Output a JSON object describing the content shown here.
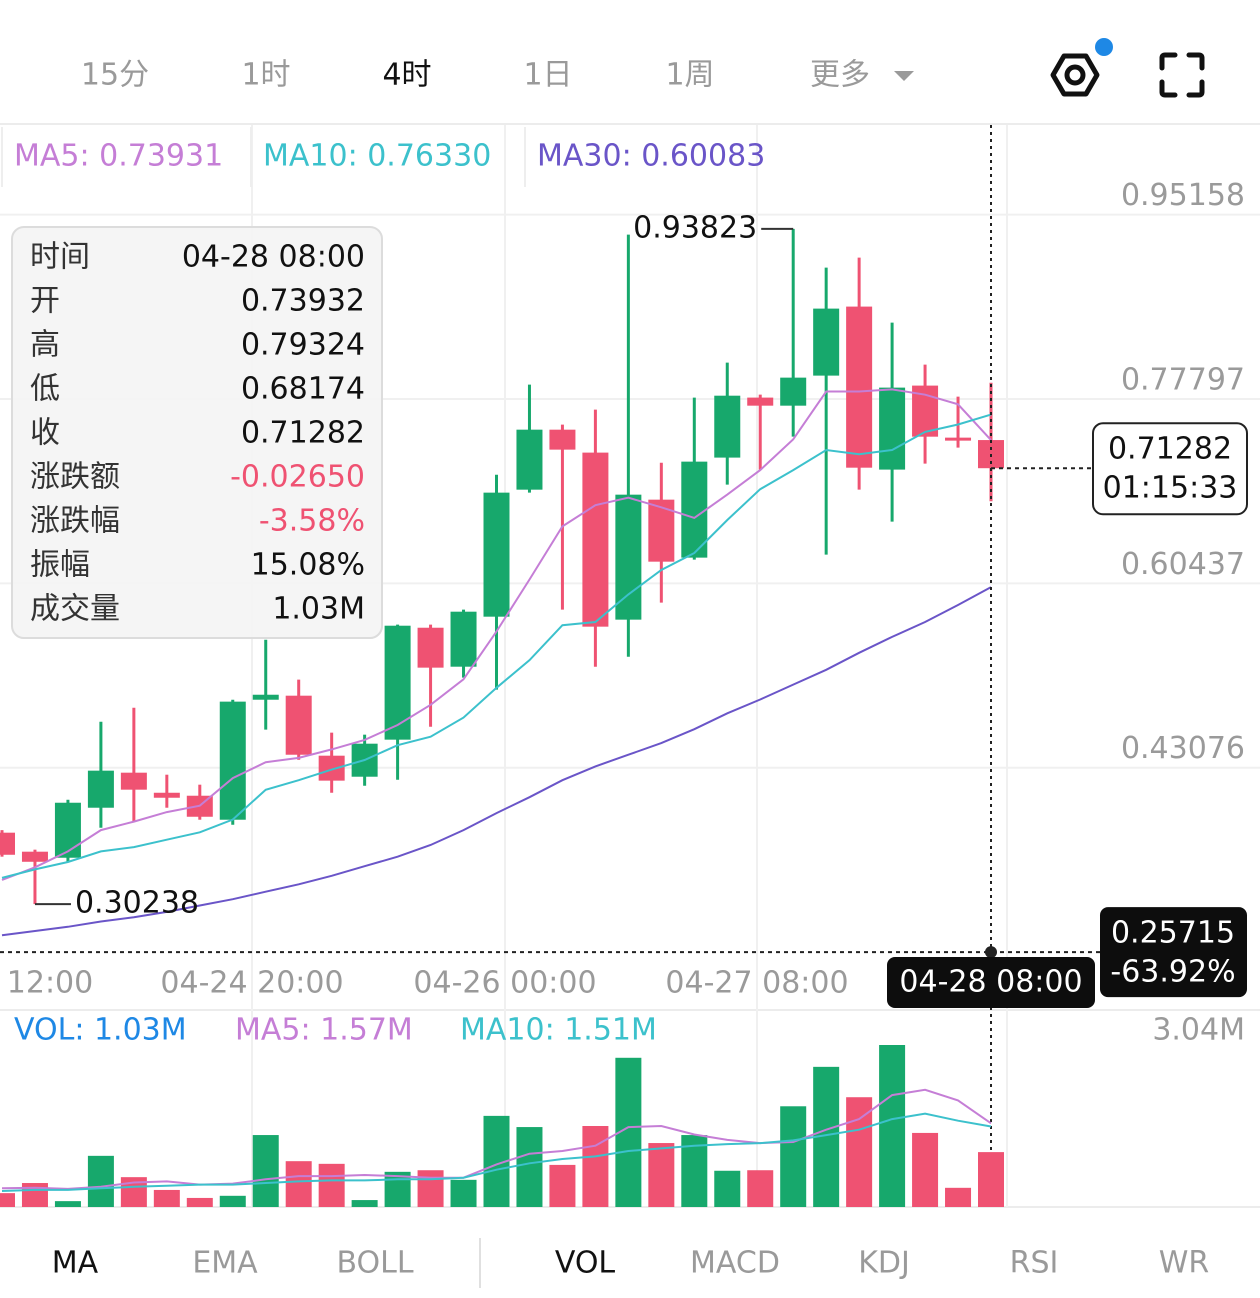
{
  "tabs": {
    "items": [
      "15分",
      "1时",
      "4时",
      "1日",
      "1周",
      "更多"
    ],
    "active": 2
  },
  "indicator_tabs": {
    "main": [
      "MA",
      "EMA",
      "BOLL"
    ],
    "sub": [
      "VOL",
      "MACD",
      "KDJ",
      "RSI",
      "WR"
    ],
    "active_main": 0,
    "active_sub": 0
  },
  "chart_data": [
    {
      "type": "candlestick",
      "open": [
        0.3696,
        0.3517,
        0.346,
        0.3931,
        0.4261,
        0.4072,
        0.4044,
        0.3818,
        0.4948,
        0.4986,
        0.4421,
        0.4223,
        0.4572,
        0.5626,
        0.5259,
        0.573,
        0.6926,
        0.7491,
        0.7275,
        0.5702,
        0.6832,
        0.6286,
        0.7228,
        0.7793,
        0.7717,
        0.8,
        0.865,
        0.7115,
        0.7906,
        0.7416,
        0.73932
      ],
      "high": [
        0.372,
        0.3536,
        0.4006,
        0.4741,
        0.4873,
        0.4242,
        0.4148,
        0.4948,
        0.5513,
        0.5137,
        0.4638,
        0.4619,
        0.5655,
        0.5655,
        0.5796,
        0.7067,
        0.7915,
        0.7538,
        0.768,
        0.9328,
        0.718,
        0.7793,
        0.8122,
        0.7821,
        0.93823,
        0.9017,
        0.9111,
        0.8499,
        0.8103,
        0.7802,
        0.79324
      ],
      "low": [
        0.347,
        0.30238,
        0.3422,
        0.3743,
        0.3799,
        0.3931,
        0.3818,
        0.3771,
        0.4666,
        0.4383,
        0.4072,
        0.4138,
        0.4195,
        0.4694,
        0.5156,
        0.5043,
        0.6898,
        0.5796,
        0.5259,
        0.5353,
        0.5862,
        0.6267,
        0.6973,
        0.7115,
        0.7425,
        0.6314,
        0.6926,
        0.6625,
        0.7171,
        0.7322,
        0.68174
      ],
      "close": [
        0.3488,
        0.3422,
        0.3978,
        0.428,
        0.4101,
        0.4025,
        0.3846,
        0.493,
        0.4995,
        0.443,
        0.4186,
        0.4534,
        0.5645,
        0.525,
        0.5777,
        0.6898,
        0.7491,
        0.7303,
        0.5636,
        0.6879,
        0.6248,
        0.719,
        0.7811,
        0.7717,
        0.7981,
        0.8631,
        0.7133,
        0.7887,
        0.7425,
        0.7388,
        0.71282
      ],
      "up_color": "#17a86c",
      "down_color": "#ef5272",
      "series": [
        {
          "name": "MA5: 0.73931",
          "color": "#c57ed6",
          "values": [
            0.325,
            0.337,
            0.352,
            0.372,
            0.38,
            0.389,
            0.395,
            0.421,
            0.436,
            0.44,
            0.448,
            0.457,
            0.471,
            0.49,
            0.514,
            0.559,
            0.608,
            0.658,
            0.678,
            0.685,
            0.676,
            0.666,
            0.688,
            0.711,
            0.74,
            0.785,
            0.785,
            0.787,
            0.782,
            0.773,
            0.73931
          ]
        },
        {
          "name": "MA10: 0.76330",
          "color": "#3cc1cc",
          "values": [
            0.327,
            0.335,
            0.342,
            0.352,
            0.356,
            0.363,
            0.37,
            0.382,
            0.41,
            0.419,
            0.429,
            0.438,
            0.452,
            0.46,
            0.478,
            0.506,
            0.532,
            0.565,
            0.568,
            0.594,
            0.617,
            0.633,
            0.664,
            0.693,
            0.711,
            0.73,
            0.726,
            0.73,
            0.747,
            0.754,
            0.7633
          ]
        },
        {
          "name": "MA30: 0.60083",
          "color": "#6a55c8",
          "values": [
            0.273,
            0.277,
            0.281,
            0.286,
            0.29,
            0.295,
            0.301,
            0.307,
            0.314,
            0.321,
            0.329,
            0.338,
            0.347,
            0.358,
            0.372,
            0.388,
            0.403,
            0.419,
            0.432,
            0.443,
            0.454,
            0.467,
            0.482,
            0.495,
            0.509,
            0.523,
            0.539,
            0.554,
            0.568,
            0.584,
            0.60083
          ]
        }
      ],
      "ylim": [
        0.245,
        1.036
      ],
      "yticks": [
        0.43076,
        0.60437,
        0.77797,
        0.95158
      ],
      "xtick_labels": [
        "12:00",
        "04-24 20:00",
        "04-26 00:00",
        "04-27 08:00"
      ],
      "grid": true,
      "countdown": "01:15:33",
      "crosshair": {
        "time": "04-28 08:00",
        "price": 0.25715,
        "change": "-63.92%"
      },
      "tooltip": {
        "labels": [
          "时间",
          "开",
          "高",
          "低",
          "收",
          "涨跌额",
          "涨跌幅",
          "振幅",
          "成交量"
        ],
        "change": "-0.02650",
        "change_pct": "-3.58%",
        "amplitude": "15.08%",
        "volume": "1.03M"
      }
    },
    {
      "type": "bar",
      "label": "VOL: 1.03M",
      "label_color": "#1e88e5",
      "values": [
        0.26,
        0.45,
        0.11,
        0.96,
        0.56,
        0.32,
        0.17,
        0.21,
        1.35,
        0.86,
        0.81,
        0.13,
        0.66,
        0.69,
        0.51,
        1.71,
        1.5,
        0.79,
        1.52,
        2.8,
        1.2,
        1.35,
        0.68,
        0.69,
        1.89,
        2.63,
        2.06,
        3.04,
        1.39,
        0.36,
        1.03
      ],
      "series": [
        {
          "name": "MA5: 1.57M",
          "color": "#c57ed6",
          "values": [
            0.35,
            0.36,
            0.34,
            0.38,
            0.46,
            0.48,
            0.42,
            0.44,
            0.52,
            0.58,
            0.58,
            0.6,
            0.58,
            0.55,
            0.55,
            0.8,
            1.0,
            1.05,
            1.15,
            1.5,
            1.52,
            1.36,
            1.26,
            1.2,
            1.22,
            1.45,
            1.65,
            2.1,
            2.2,
            2.0,
            1.57
          ]
        },
        {
          "name": "MA10: 1.51M",
          "color": "#3cc1cc",
          "values": [
            0.3,
            0.32,
            0.32,
            0.35,
            0.38,
            0.4,
            0.42,
            0.42,
            0.45,
            0.48,
            0.5,
            0.5,
            0.52,
            0.52,
            0.55,
            0.7,
            0.82,
            0.9,
            0.95,
            1.05,
            1.1,
            1.15,
            1.18,
            1.2,
            1.25,
            1.35,
            1.45,
            1.65,
            1.75,
            1.62,
            1.51
          ]
        }
      ],
      "ylim": [
        0,
        3.04
      ],
      "yticks": [
        {
          "value": 3.04,
          "label": "3.04M"
        }
      ]
    }
  ]
}
